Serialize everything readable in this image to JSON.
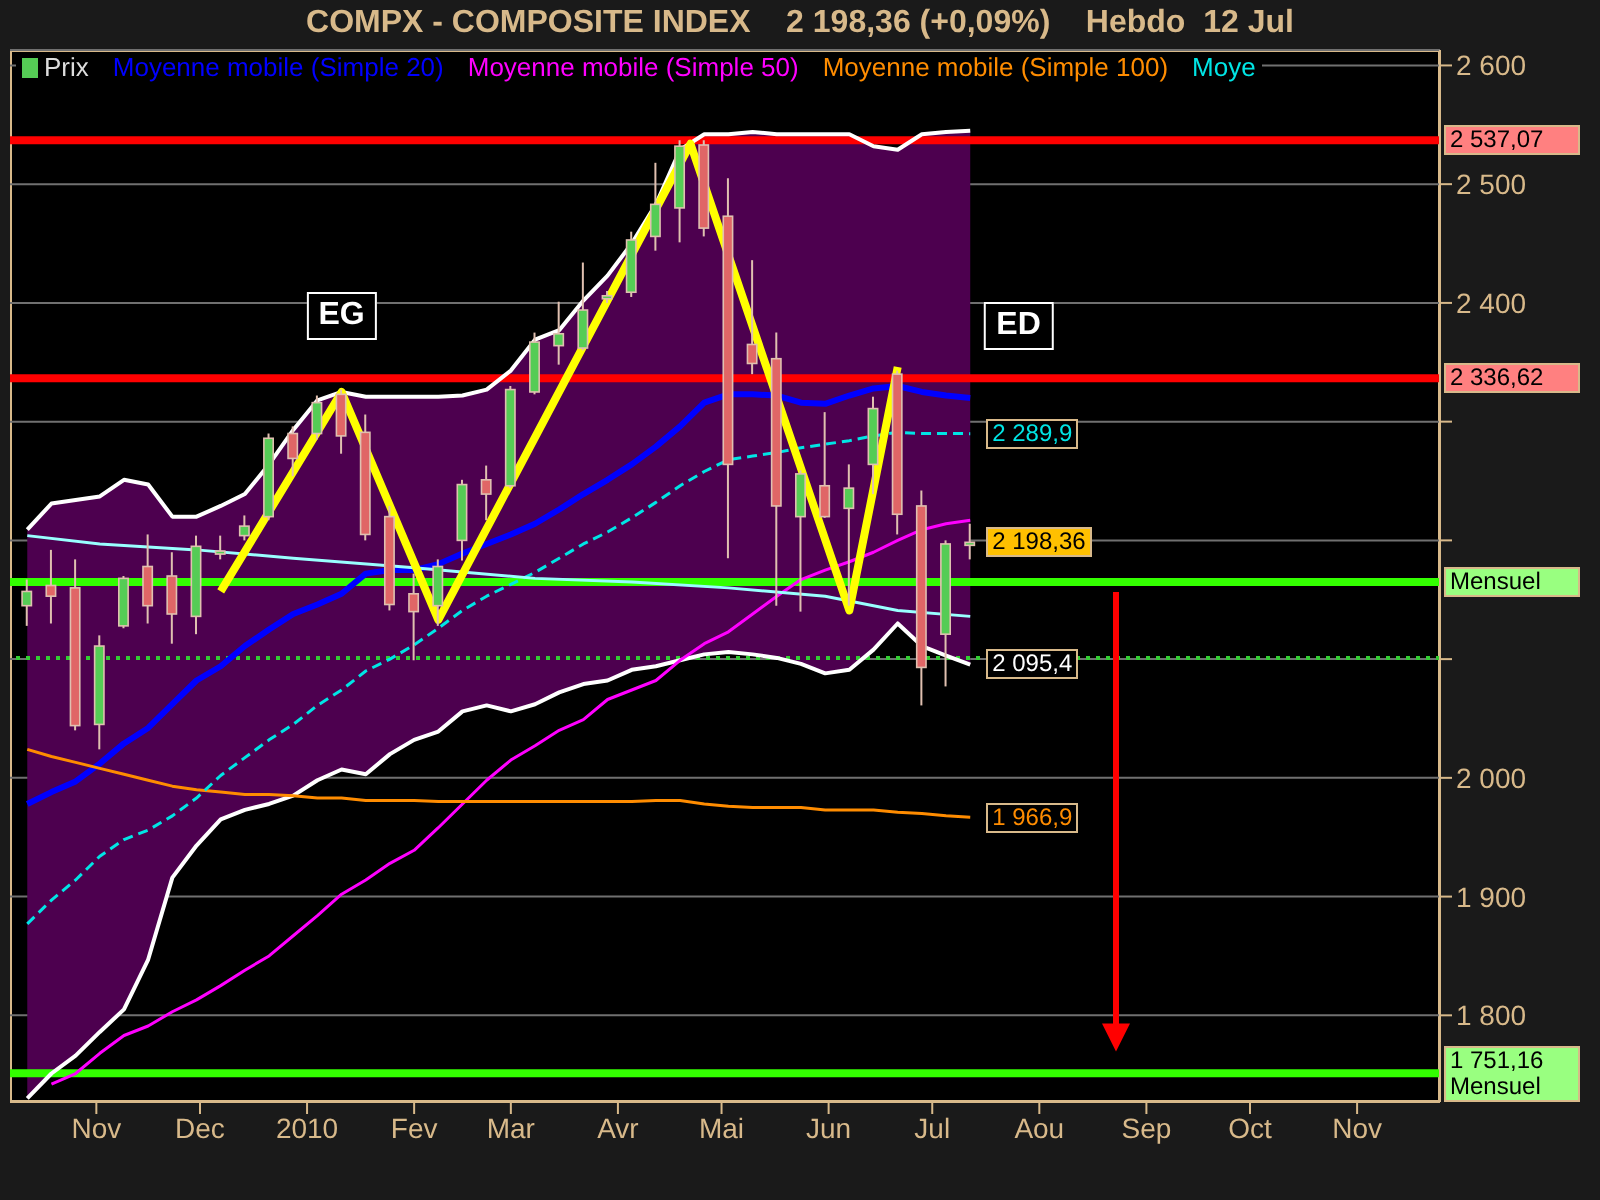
{
  "chart_data": {
    "type": "candlestick",
    "title": "COMPX - COMPOSITE INDEX    2 198,36 (+0,09%)    Hebdo  12 Jul",
    "x": [
      "2009-10-12",
      "2009-10-19",
      "2009-10-26",
      "2009-11-02",
      "2009-11-09",
      "2009-11-16",
      "2009-11-23",
      "2009-11-30",
      "2009-12-07",
      "2009-12-14",
      "2009-12-21",
      "2009-12-28",
      "2010-01-04",
      "2010-01-11",
      "2010-01-18",
      "2010-01-25",
      "2010-02-01",
      "2010-02-08",
      "2010-02-15",
      "2010-02-22",
      "2010-03-01",
      "2010-03-08",
      "2010-03-15",
      "2010-03-22",
      "2010-03-29",
      "2010-04-05",
      "2010-04-12",
      "2010-04-19",
      "2010-04-26",
      "2010-05-03",
      "2010-05-10",
      "2010-05-17",
      "2010-05-24",
      "2010-05-31",
      "2010-06-07",
      "2010-06-14",
      "2010-06-21",
      "2010-06-28",
      "2010-07-05",
      "2010-07-12"
    ],
    "series": [
      {
        "type": "line",
        "name": "Moyenne mobile (Simple 20)",
        "color": "#0000ff",
        "values": [
          1978,
          1988,
          1997,
          2012,
          2029,
          2042,
          2062,
          2082,
          2094,
          2111,
          2125,
          2138,
          2146,
          2155,
          2172,
          2175,
          2175,
          2180,
          2189,
          2197,
          2205,
          2214,
          2226,
          2239,
          2251,
          2264,
          2279,
          2296,
          2316,
          2323,
          2323,
          2322,
          2316,
          2315,
          2322,
          2328,
          2330,
          2325,
          2322,
          2320
        ],
        "lower": [
          1730,
          1751,
          1766,
          1786,
          1805,
          1847,
          1916,
          1943,
          1965,
          1973,
          1978,
          1985,
          1998,
          2007,
          2003,
          2020,
          2032,
          2039,
          2056,
          2061,
          2056,
          2062,
          2072,
          2079,
          2082,
          2091,
          2094,
          2099,
          2104,
          2106,
          2104,
          2101,
          2096,
          2088,
          2091,
          2108,
          2130,
          2111,
          2103,
          2095.4
        ],
        "upper": [
          2209,
          2231,
          2234,
          2237,
          2251,
          2247,
          2220,
          2220,
          2229,
          2239,
          2264,
          2293,
          2318,
          2325,
          2321,
          2321,
          2321,
          2321,
          2322,
          2327,
          2343,
          2369,
          2377,
          2402,
          2423,
          2450,
          2483,
          2529,
          2542,
          2542,
          2544,
          2542,
          2542,
          2542,
          2542,
          2532,
          2529,
          2542,
          2544,
          2545
        ]
      },
      {
        "type": "line",
        "color": "#ffffff",
        "values": [
          2209,
          2231,
          2234,
          2237,
          2251,
          2247,
          2220,
          2220,
          2229,
          2239,
          2264,
          2293,
          2318,
          2325,
          2321,
          2321,
          2321,
          2321,
          2322,
          2327,
          2343,
          2369,
          2377,
          2402,
          2423,
          2450,
          2483,
          2529,
          2542,
          2542,
          2544,
          2542,
          2542,
          2542,
          2542,
          2532,
          2529,
          2542,
          2544,
          2545
        ]
      },
      {
        "type": "line",
        "color": "#ffffff",
        "values": [
          1730,
          1751,
          1766,
          1786,
          1805,
          1847,
          1916,
          1943,
          1965,
          1973,
          1978,
          1985,
          1998,
          2007,
          2003,
          2020,
          2032,
          2039,
          2056,
          2061,
          2056,
          2062,
          2072,
          2079,
          2082,
          2091,
          2094,
          2099,
          2104,
          2106,
          2104,
          2101,
          2096,
          2088,
          2091,
          2108,
          2130,
          2111,
          2103,
          2095.4
        ]
      },
      {
        "type": "line",
        "name": "Moyenne mobile (Simple 50)",
        "color": "#ff00ff",
        "values": [
          null,
          1742,
          1751,
          1768,
          1783,
          1791,
          1803,
          1813,
          1825,
          1838,
          1850,
          1867,
          1884,
          1902,
          1914,
          1928,
          1939,
          1958,
          1978,
          1998,
          2015,
          2027,
          2040,
          2049,
          2066,
          2074,
          2082,
          2099,
          2113,
          2123,
          2138,
          2153,
          2167,
          2175,
          2182,
          2190,
          2200,
          2209,
          2214,
          2217
        ]
      },
      {
        "type": "line",
        "name": "Moyenne mobile (Simple 100)",
        "color": "#ff8c00",
        "values": [
          2024,
          2018,
          2013,
          2008,
          2003,
          1998,
          1993,
          1990,
          1988,
          1986,
          1986,
          1985,
          1983,
          1983,
          1981,
          1981,
          1981,
          1980,
          1980,
          1980,
          1980,
          1980,
          1980,
          1980,
          1980,
          1980,
          1981,
          1981,
          1978,
          1976,
          1975,
          1975,
          1975,
          1973,
          1973,
          1973,
          1971,
          1970,
          1968,
          1966.9
        ],
        "value_labels": [
          null,
          null,
          null,
          null,
          null,
          null,
          null,
          null,
          null,
          null,
          null,
          null,
          null,
          null,
          null,
          null,
          null,
          null,
          null,
          null,
          null,
          null,
          null,
          null,
          null,
          null,
          null,
          null,
          null,
          null,
          null,
          null,
          null,
          null,
          null,
          null,
          null,
          null,
          null,
          "1 966,9"
        ]
      },
      {
        "type": "line",
        "name": "Moye",
        "color": "#00e5e5",
        "line_style": "dashed",
        "values": [
          1877,
          1897,
          1914,
          1934,
          1948,
          1956,
          1968,
          1983,
          2002,
          2017,
          2032,
          2045,
          2061,
          2074,
          2090,
          2100,
          2112,
          2126,
          2141,
          2153,
          2163,
          2173,
          2185,
          2197,
          2207,
          2219,
          2232,
          2246,
          2258,
          2268,
          2271,
          2274,
          2278,
          2281,
          2284,
          2288,
          2291,
          2290,
          2290,
          2289.9
        ],
        "value_labels": [
          null,
          null,
          null,
          null,
          null,
          null,
          null,
          null,
          null,
          null,
          null,
          null,
          null,
          null,
          null,
          null,
          null,
          null,
          null,
          null,
          null,
          null,
          null,
          null,
          null,
          null,
          null,
          null,
          null,
          null,
          null,
          null,
          null,
          null,
          null,
          null,
          null,
          null,
          null,
          "2 289,9"
        ]
      },
      {
        "type": "line",
        "color": "#99ffff",
        "x": [
          "2009-10-12",
          "2009-11-02",
          "2009-11-30",
          "2009-12-28",
          "2010-02-01",
          "2010-03-08",
          "2010-04-05",
          "2010-05-03",
          "2010-05-31",
          "2010-06-21",
          "2010-07-12"
        ],
        "values": [
          2204,
          2197,
          2192,
          2185,
          2177,
          2168,
          2165,
          2160,
          2153,
          2141,
          2136
        ]
      },
      {
        "type": "candlestick",
        "name": "Prix",
        "color": "#dddddd",
        "ohlc": [
          [
            2145,
            2167,
            2128,
            2157
          ],
          [
            2162,
            2192,
            2130,
            2153
          ],
          [
            2160,
            2184,
            2040,
            2044
          ],
          [
            2045,
            2120,
            2024,
            2111
          ],
          [
            2128,
            2170,
            2126,
            2168
          ],
          [
            2178,
            2205,
            2130,
            2145
          ],
          [
            2170,
            2190,
            2113,
            2138
          ],
          [
            2136,
            2204,
            2121,
            2195
          ],
          [
            2189,
            2204,
            2184,
            2191
          ],
          [
            2204,
            2221,
            2200,
            2212
          ],
          [
            2220,
            2290,
            2217,
            2286
          ],
          [
            2290,
            2296,
            2254,
            2269
          ],
          [
            2290,
            2322,
            2285,
            2316
          ],
          [
            2323,
            2327,
            2273,
            2288
          ],
          [
            2291,
            2306,
            2200,
            2205
          ],
          [
            2220,
            2229,
            2141,
            2146
          ],
          [
            2155,
            2172,
            2099,
            2140
          ],
          [
            2145,
            2184,
            2128,
            2178
          ],
          [
            2200,
            2251,
            2183,
            2247
          ],
          [
            2251,
            2263,
            2217,
            2239
          ],
          [
            2246,
            2330,
            2244,
            2327
          ],
          [
            2325,
            2375,
            2323,
            2367
          ],
          [
            2364,
            2401,
            2348,
            2374
          ],
          [
            2362,
            2434,
            2360,
            2394
          ],
          [
            2404,
            2410,
            2400,
            2406
          ],
          [
            2409,
            2460,
            2405,
            2453
          ],
          [
            2456,
            2518,
            2444,
            2483
          ],
          [
            2480,
            2537,
            2451,
            2532
          ],
          [
            2533,
            2537,
            2456,
            2463
          ],
          [
            2473,
            2505,
            2185,
            2264
          ],
          [
            2365,
            2436,
            2340,
            2349
          ],
          [
            2353,
            2375,
            2145,
            2229
          ],
          [
            2220,
            2259,
            2140,
            2256
          ],
          [
            2246,
            2308,
            2219,
            2220
          ],
          [
            2227,
            2264,
            2145,
            2244
          ],
          [
            2264,
            2321,
            2239,
            2311
          ],
          [
            2340,
            2343,
            2205,
            2222
          ],
          [
            2229,
            2242,
            2061,
            2093
          ],
          [
            2121,
            2200,
            2077,
            2197
          ],
          [
            2196,
            2214,
            2184,
            2198.36
          ]
        ],
        "colors": [
          "#55cc55",
          "#e06666",
          "#e06666",
          "#55cc55",
          "#55cc55",
          "#e06666",
          "#e06666",
          "#55cc55",
          "#55cc55",
          "#55cc55",
          "#55cc55",
          "#e06666",
          "#55cc55",
          "#e06666",
          "#e06666",
          "#e06666",
          "#e06666",
          "#55cc55",
          "#55cc55",
          "#e06666",
          "#55cc55",
          "#55cc55",
          "#55cc55",
          "#55cc55",
          "#55cc55",
          "#55cc55",
          "#55cc55",
          "#55cc55",
          "#e06666",
          "#e06666",
          "#e06666",
          "#e06666",
          "#55cc55",
          "#e06666",
          "#55cc55",
          "#55cc55",
          "#e06666",
          "#e06666",
          "#55cc55",
          "#55cc55"
        ],
        "value_labels": [
          null,
          null,
          null,
          null,
          null,
          null,
          null,
          null,
          null,
          null,
          null,
          null,
          null,
          null,
          null,
          null,
          null,
          null,
          null,
          null,
          null,
          null,
          null,
          null,
          null,
          null,
          null,
          null,
          null,
          null,
          null,
          null,
          null,
          null,
          null,
          null,
          null,
          null,
          null,
          "2 198,36"
        ]
      },
      {
        "type": "line",
        "color": "#ffff00",
        "x": [
          "2009-12-07",
          "2010-01-11",
          "2010-02-08",
          "2010-04-22",
          "2010-06-07",
          "2010-06-21"
        ],
        "values": [
          2157,
          2325,
          2133,
          2534,
          2141,
          2346
        ]
      }
    ],
    "ylim": [
      1727,
      2613
    ],
    "yticks": [
      {
        "value": 1800,
        "label": "1 800"
      },
      {
        "value": 1900,
        "label": "1 900"
      },
      {
        "value": 2000,
        "label": "2 000"
      },
      {
        "value": 2100,
        "label": null
      },
      {
        "value": 2200,
        "label": null
      },
      {
        "value": 2300,
        "label": null
      },
      {
        "value": 2400,
        "label": "2 400"
      },
      {
        "value": 2500,
        "label": "2 500"
      },
      {
        "value": 2600,
        "label": "2 600"
      }
    ],
    "xlim": [
      "2009-10-07",
      "2010-11-25"
    ],
    "xticks": [
      {
        "value": "2009-11-01",
        "label": "Nov"
      },
      {
        "value": "2009-12-01",
        "label": "Dec"
      },
      {
        "value": "2010-01-01",
        "label": "2010"
      },
      {
        "value": "2010-02-01",
        "label": "Fev"
      },
      {
        "value": "2010-03-01",
        "label": "Mar"
      },
      {
        "value": "2010-04-01",
        "label": "Avr"
      },
      {
        "value": "2010-05-01",
        "label": "Mai"
      },
      {
        "value": "2010-06-01",
        "label": "Jun"
      },
      {
        "value": "2010-07-01",
        "label": "Jul"
      },
      {
        "value": "2010-08-01",
        "label": "Aou"
      },
      {
        "value": "2010-09-01",
        "label": "Sep"
      },
      {
        "value": "2010-10-01",
        "label": "Oct"
      },
      {
        "value": "2010-11-01",
        "label": "Nov"
      }
    ],
    "ref_lines": [
      {
        "axis": "y",
        "value": 2537.07,
        "label": "2 537,07",
        "color": "#ff0000"
      },
      {
        "axis": "y",
        "value": 2336.62,
        "label": "2 336,62",
        "color": "#ff0000"
      },
      {
        "axis": "y",
        "value": 2165,
        "label": "Mensuel",
        "color": "#33ff00"
      },
      {
        "axis": "y",
        "value": 1751.16,
        "label": "1 751,16 Mensuel",
        "color": "#33ff00"
      },
      {
        "axis": "y",
        "value": 2101,
        "color": "#33cc33",
        "line_style": "dotted"
      }
    ],
    "annotations": [
      {
        "text": "EG",
        "x": "2010-01-11",
        "y": 2389
      },
      {
        "text": "ED",
        "x": "2010-07-26",
        "y": 2380
      },
      {
        "text": "2 095,4",
        "x": "2010-07-12",
        "y": 2095.4
      }
    ],
    "grid": "y",
    "legend": "top left"
  }
}
